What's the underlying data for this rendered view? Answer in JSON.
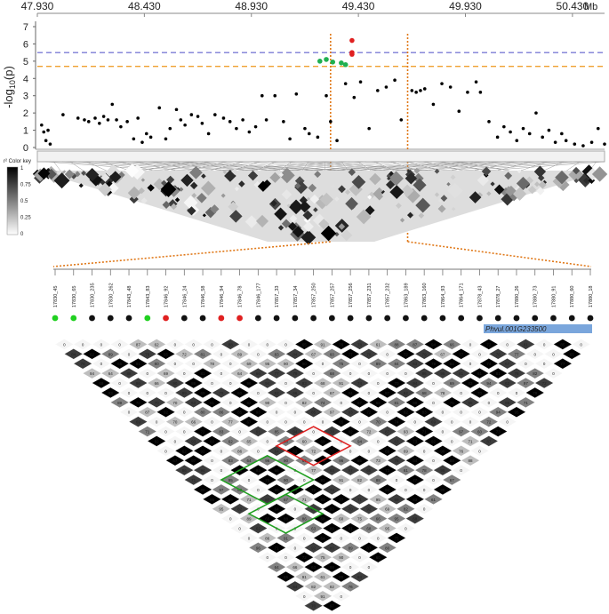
{
  "chart_data": {
    "type": "scatter",
    "x_axis": {
      "unit": "Mb",
      "tick_labels": [
        "47.930",
        "48.430",
        "48.930",
        "49.430",
        "49.930",
        "50.430"
      ],
      "ticks": [
        47.93,
        48.43,
        48.93,
        49.43,
        49.93,
        50.43
      ],
      "range": [
        47.93,
        50.58
      ]
    },
    "y_axis": {
      "label": "-log10(p)",
      "tick_labels": [
        "0",
        "1",
        "2",
        "3",
        "4",
        "5",
        "6",
        "7"
      ],
      "range": [
        0,
        7
      ]
    },
    "thresholds": [
      {
        "value": 5.5,
        "color": "#7c7cd6",
        "style": "dashed"
      },
      {
        "value": 4.7,
        "color": "#f0a030",
        "style": "dashed"
      }
    ],
    "region_lines_mb": [
      49.3,
      49.66
    ],
    "series": [
      {
        "color": "#000000",
        "points": [
          [
            47.95,
            1.3
          ],
          [
            47.96,
            0.9
          ],
          [
            47.97,
            0.4
          ],
          [
            47.98,
            1.0
          ],
          [
            47.99,
            0.2
          ],
          [
            48.05,
            1.9
          ],
          [
            48.12,
            1.7
          ],
          [
            48.15,
            1.6
          ],
          [
            48.17,
            1.5
          ],
          [
            48.2,
            1.7
          ],
          [
            48.22,
            1.4
          ],
          [
            48.24,
            1.8
          ],
          [
            48.26,
            1.6
          ],
          [
            48.28,
            2.5
          ],
          [
            48.3,
            1.6
          ],
          [
            48.32,
            1.2
          ],
          [
            48.35,
            1.5
          ],
          [
            48.38,
            0.5
          ],
          [
            48.4,
            1.7
          ],
          [
            48.42,
            0.3
          ],
          [
            48.44,
            0.8
          ],
          [
            48.46,
            0.6
          ],
          [
            48.5,
            2.3
          ],
          [
            48.53,
            0.5
          ],
          [
            48.55,
            1.1
          ],
          [
            48.58,
            2.2
          ],
          [
            48.6,
            1.6
          ],
          [
            48.62,
            1.3
          ],
          [
            48.65,
            1.9
          ],
          [
            48.68,
            1.8
          ],
          [
            48.7,
            1.4
          ],
          [
            48.73,
            0.8
          ],
          [
            48.76,
            1.9
          ],
          [
            48.8,
            1.7
          ],
          [
            48.83,
            1.5
          ],
          [
            48.86,
            1.1
          ],
          [
            48.89,
            1.6
          ],
          [
            48.92,
            0.9
          ],
          [
            48.95,
            1.2
          ],
          [
            48.98,
            3.0
          ],
          [
            49.0,
            1.6
          ],
          [
            49.04,
            3.0
          ],
          [
            49.08,
            1.5
          ],
          [
            49.11,
            0.5
          ],
          [
            49.14,
            3.1
          ],
          [
            49.18,
            1.1
          ],
          [
            49.2,
            0.8
          ],
          [
            49.24,
            0.6
          ],
          [
            49.28,
            3.0
          ],
          [
            49.3,
            1.5
          ],
          [
            49.33,
            0.4
          ],
          [
            49.37,
            3.7
          ],
          [
            49.41,
            2.9
          ],
          [
            49.44,
            3.8
          ],
          [
            49.48,
            1.1
          ],
          [
            49.52,
            3.3
          ],
          [
            49.56,
            3.5
          ],
          [
            49.6,
            3.9
          ],
          [
            49.63,
            1.6
          ],
          [
            49.68,
            3.3
          ],
          [
            49.7,
            3.2
          ],
          [
            49.72,
            3.3
          ],
          [
            49.74,
            3.4
          ],
          [
            49.78,
            2.5
          ],
          [
            49.82,
            3.7
          ],
          [
            49.86,
            3.5
          ],
          [
            49.9,
            2.1
          ],
          [
            49.94,
            3.2
          ],
          [
            49.98,
            3.8
          ],
          [
            50.0,
            3.2
          ],
          [
            50.04,
            1.5
          ],
          [
            50.08,
            0.6
          ],
          [
            50.11,
            1.2
          ],
          [
            50.14,
            0.9
          ],
          [
            50.17,
            0.4
          ],
          [
            50.2,
            1.1
          ],
          [
            50.23,
            0.8
          ],
          [
            50.26,
            2.0
          ],
          [
            50.29,
            0.6
          ],
          [
            50.32,
            1.0
          ],
          [
            50.35,
            0.3
          ],
          [
            50.38,
            0.8
          ],
          [
            50.4,
            0.4
          ],
          [
            50.44,
            0.2
          ],
          [
            50.48,
            0.1
          ],
          [
            50.52,
            0.3
          ],
          [
            50.55,
            1.1
          ],
          [
            50.58,
            0.2
          ],
          [
            50.62,
            1.6
          ],
          [
            50.66,
            1.0
          ],
          [
            50.7,
            0.4
          ],
          [
            50.74,
            0.5
          ],
          [
            50.77,
            0.6
          ],
          [
            50.8,
            0.5
          ]
        ]
      },
      {
        "color": "#20b050",
        "points": [
          [
            49.25,
            5.0
          ],
          [
            49.28,
            5.1
          ],
          [
            49.31,
            4.95
          ],
          [
            49.35,
            4.9
          ],
          [
            49.37,
            4.8
          ]
        ]
      },
      {
        "color": "#e02020",
        "points": [
          [
            49.4,
            6.2
          ],
          [
            49.4,
            5.5
          ],
          [
            49.4,
            5.4
          ]
        ]
      }
    ]
  },
  "color_key": {
    "title": "r² Color key",
    "tick_labels": [
      "1",
      "0.75",
      "0.5",
      "0.25",
      "0"
    ]
  },
  "markers": {
    "labels": [
      "17830_45",
      "17830_65",
      "17830_235",
      "17830_262",
      "17843_48",
      "17843_83",
      "17846_92",
      "17846_24",
      "17846_58",
      "17846_94",
      "17846_78",
      "17846_177",
      "17857_33",
      "17857_34",
      "17857_250",
      "17857_257",
      "17857_256",
      "17857_231",
      "17857_232",
      "17863_189",
      "17863_160",
      "17864_93",
      "17864_171",
      "17878_43",
      "17878_27",
      "17880_26",
      "17880_73",
      "17880_91",
      "17880_60",
      "17880_18"
    ],
    "dot_colors": [
      "#20d020",
      "#20d020",
      "#111111",
      "#111111",
      "#111111",
      "#20d020",
      "#e02020",
      "#111111",
      "#111111",
      "#e02020",
      "#e02020",
      "#111111",
      "#111111",
      "#111111",
      "#111111",
      "#111111",
      "#111111",
      "#111111",
      "#111111",
      "#111111",
      "#111111",
      "#111111",
      "#111111",
      "#111111",
      "#111111",
      "#111111",
      "#111111",
      "#111111",
      "#111111",
      "#111111"
    ]
  },
  "gene_label": "Phvul.001G233500"
}
